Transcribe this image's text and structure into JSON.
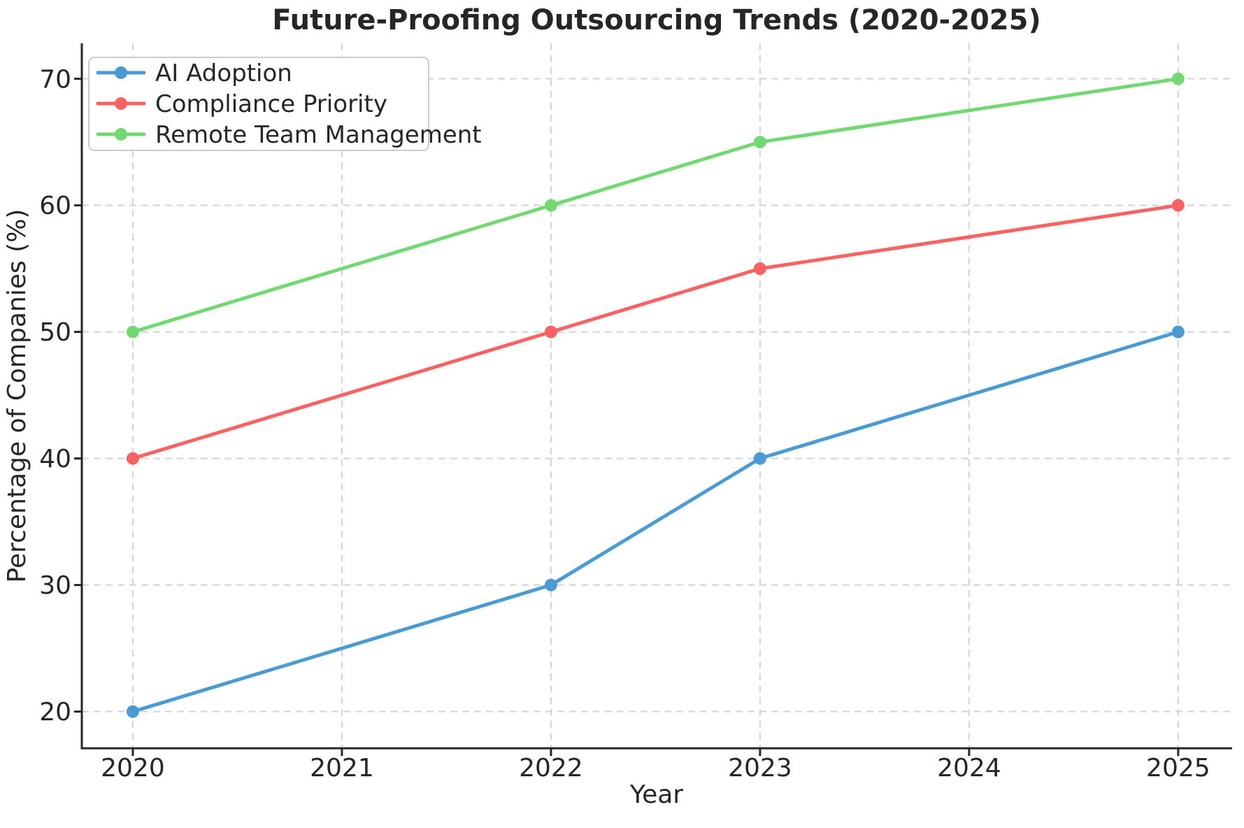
{
  "chart_data": {
    "type": "line",
    "title": "Future-Proofing Outsourcing Trends (2020-2025)",
    "xlabel": "Year",
    "ylabel": "Percentage of Companies (%)",
    "x": [
      2020,
      2022,
      2023,
      2025
    ],
    "series": [
      {
        "name": "AI Adoption",
        "color": "#4A9AD4",
        "values": [
          20,
          30,
          40,
          50
        ]
      },
      {
        "name": "Compliance Priority",
        "color": "#F96262",
        "values": [
          40,
          50,
          55,
          60
        ]
      },
      {
        "name": "Remote Team Management",
        "color": "#72D972",
        "values": [
          50,
          60,
          65,
          70
        ]
      }
    ],
    "x_ticks": [
      2020,
      2021,
      2022,
      2023,
      2024,
      2025
    ],
    "x_tick_labels": [
      "2020",
      "2021",
      "2022",
      "2023",
      "2024",
      "2025"
    ],
    "y_ticks": [
      20,
      30,
      40,
      50,
      60,
      70
    ],
    "y_tick_labels": [
      "20",
      "30",
      "40",
      "50",
      "60",
      "70"
    ],
    "xlim": [
      2019.756,
      2025.258
    ],
    "ylim": [
      17.1,
      72.8
    ],
    "grid": true,
    "grid_style": "dashed",
    "legend_position": "upper-left",
    "colors": {
      "grid": "#D3D3D3",
      "spine": "#262626",
      "text": "#262626",
      "legend_border": "#CCCCCC",
      "legend_fill": "#FFFFFF"
    }
  }
}
